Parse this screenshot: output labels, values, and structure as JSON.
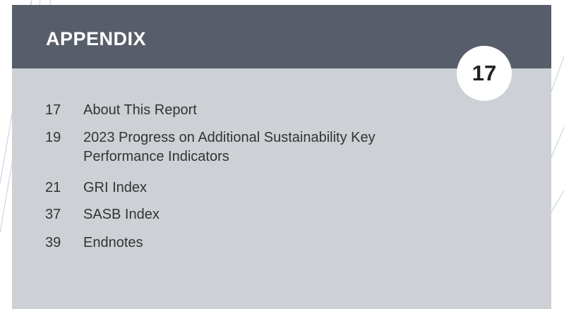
{
  "header": {
    "title": "APPENDIX",
    "page": "17"
  },
  "items": [
    {
      "page": "17",
      "text": "About This Report"
    },
    {
      "page": "19",
      "text": "2023 Progress on Additional Sustainability Key Performance Indicators"
    },
    {
      "page": "21",
      "text": "GRI Index"
    },
    {
      "page": "37",
      "text": "SASB Index"
    },
    {
      "page": "39",
      "text": "Endnotes"
    }
  ]
}
